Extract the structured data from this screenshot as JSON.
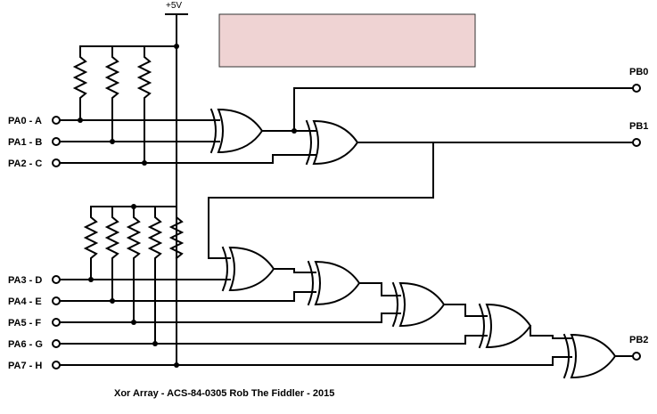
{
  "supply_label": "+5V",
  "note_box_color": "#efd3d3",
  "inputs": [
    "PA0 - A",
    "PA1 - B",
    "PA2 - C",
    "PA3 - D",
    "PA4 - E",
    "PA5 - F",
    "PA6 - G",
    "PA7 - H"
  ],
  "outputs": [
    "PB0",
    "PB1",
    "PB2"
  ],
  "caption": "Xor Array - ACS-84-0305 Rob The Fiddler - 2015"
}
